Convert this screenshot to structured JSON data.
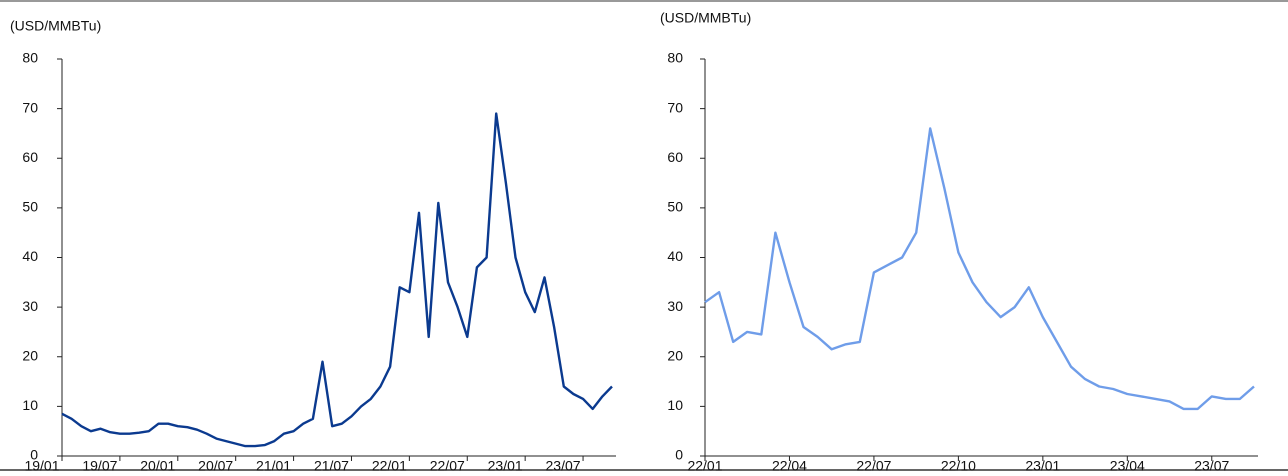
{
  "chart_data": [
    {
      "type": "line",
      "ylabel": "(USD/MMBTu)",
      "categories": [
        "19/01",
        null,
        null,
        null,
        null,
        null,
        "19/07",
        null,
        null,
        null,
        null,
        null,
        "20/01",
        null,
        null,
        null,
        null,
        null,
        "20/07",
        null,
        null,
        null,
        null,
        null,
        "21/01",
        null,
        null,
        null,
        null,
        null,
        "21/07",
        null,
        null,
        null,
        null,
        null,
        "22/01",
        null,
        null,
        null,
        null,
        null,
        "22/07",
        null,
        null,
        null,
        null,
        null,
        "23/01",
        null,
        null,
        null,
        null,
        null,
        "23/07",
        null,
        null,
        null
      ],
      "color": "#0b3a8f",
      "values": [
        8.5,
        7.5,
        6,
        5,
        5.5,
        4.8,
        4.5,
        4.5,
        4.7,
        5,
        6.5,
        6.5,
        6,
        5.8,
        5.3,
        4.5,
        3.5,
        3,
        2.5,
        2,
        2,
        2.2,
        3,
        4.5,
        5,
        6.5,
        7.5,
        19,
        6,
        6.5,
        8,
        10,
        11.5,
        14,
        18,
        34,
        33,
        49,
        24,
        51,
        35,
        30,
        24,
        38,
        40,
        69,
        55,
        40,
        33,
        29,
        36,
        26,
        14,
        12.5,
        11.5,
        9.5,
        12,
        14
      ],
      "ylim": [
        0,
        80
      ],
      "yticks": [
        0,
        10,
        20,
        30,
        40,
        50,
        60,
        70,
        80
      ]
    },
    {
      "type": "line",
      "ylabel": "(USD/MMBTu)",
      "categories": [
        "22/01",
        null,
        null,
        null,
        null,
        null,
        "22/04",
        null,
        null,
        null,
        null,
        null,
        "22/07",
        null,
        null,
        null,
        null,
        null,
        "22/10",
        null,
        null,
        null,
        null,
        null,
        "23/01",
        null,
        null,
        null,
        null,
        null,
        "23/04",
        null,
        null,
        null,
        null,
        null,
        "23/07",
        null,
        null,
        null
      ],
      "color": "#6f9de9",
      "values": [
        31,
        33,
        23,
        25,
        24.5,
        45,
        35,
        26,
        24,
        21.5,
        22.5,
        23,
        37,
        38.5,
        40,
        45,
        66,
        54,
        41,
        35,
        31,
        28,
        30,
        34,
        28,
        23,
        18,
        15.5,
        14,
        13.5,
        12.5,
        12,
        11.5,
        11,
        9.5,
        9.5,
        12,
        11.5,
        11.5,
        14
      ],
      "ylim": [
        0,
        80
      ],
      "yticks": [
        0,
        10,
        20,
        30,
        40,
        50,
        60,
        70,
        80
      ]
    }
  ]
}
